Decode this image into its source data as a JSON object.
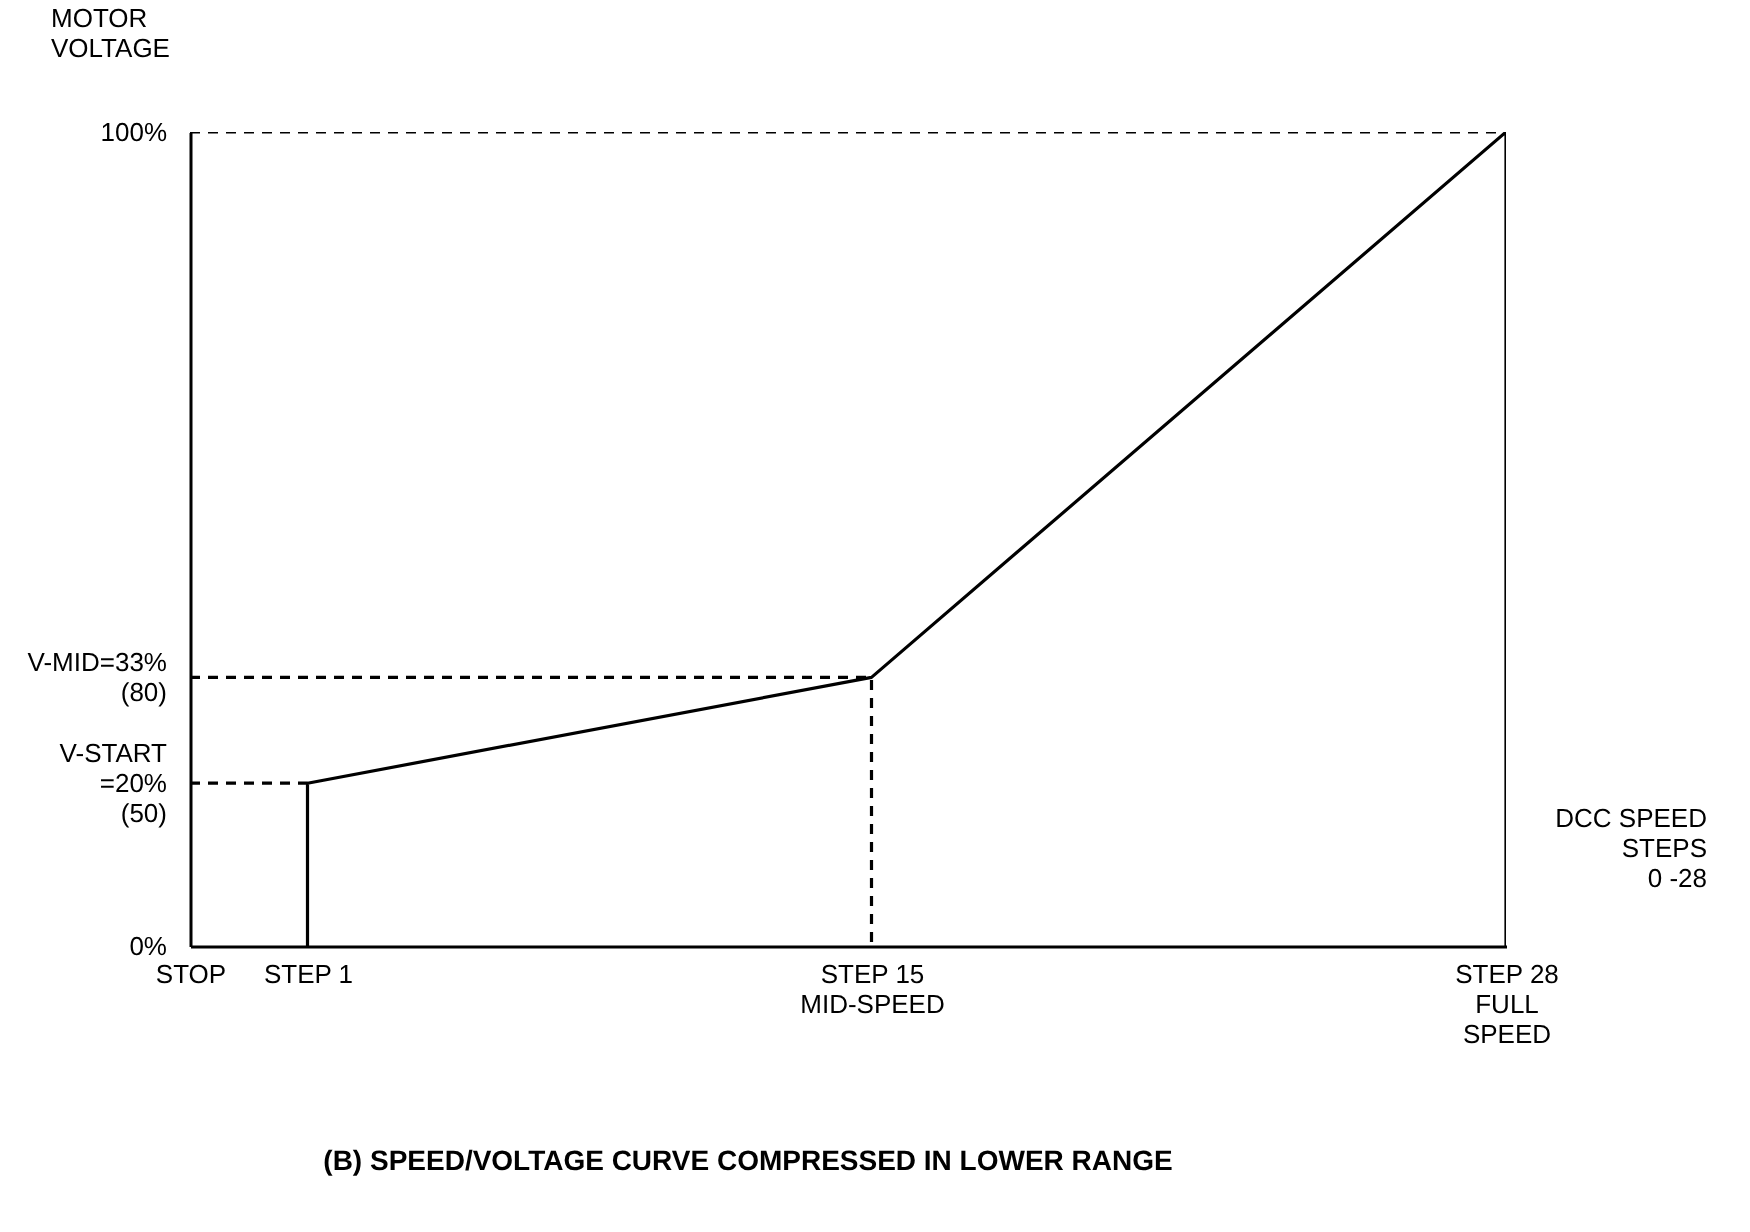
{
  "chart_data": {
    "type": "line",
    "title": "(B) SPEED/VOLTAGE CURVE COMPRESSED IN LOWER RANGE",
    "xlabel": "DCC SPEED\nSTEPS\n0 -28",
    "ylabel": "MOTOR\nVOLTAGE",
    "categories": [
      "STOP",
      null,
      null,
      null,
      null,
      "STEP 1",
      null,
      null,
      null,
      null,
      null,
      null,
      null,
      null,
      null,
      null,
      null,
      null,
      null,
      null,
      null,
      null,
      null,
      null,
      null,
      null,
      null,
      null,
      null,
      "STEP 15\nMID-SPEED",
      null,
      null,
      null,
      null,
      null,
      null,
      null,
      null,
      null,
      null,
      null,
      null,
      null,
      null,
      null,
      null,
      null,
      null,
      null,
      null,
      null,
      null,
      null,
      null,
      null,
      null,
      "STEP 28\nFULL\nSPEED"
    ],
    "ylim": [
      0,
      100
    ],
    "yticks": [
      {
        "value": 0,
        "label": "0%"
      },
      {
        "value": 20,
        "label": "V-START\n=20%\n(50)"
      },
      {
        "value": 33,
        "label": "V-MID=33%\n(80)"
      },
      {
        "value": 100,
        "label": "100%"
      }
    ],
    "series": [
      {
        "color": "#000000",
        "x": [
          "STEP 1",
          "STEP 1",
          "STEP 15\nMID-SPEED",
          "STEP 28\nFULL\nSPEED",
          "STEP 28\nFULL\nSPEED"
        ],
        "values": [
          0,
          20,
          33,
          100,
          0
        ],
        "line_style": "solid"
      },
      {
        "color": "#000000",
        "x": [
          "STOP",
          "STEP 28\nFULL\nSPEED"
        ],
        "values": [
          100,
          100
        ],
        "line_style": "dashed"
      },
      {
        "color": "#000000",
        "x": [
          "STOP",
          "STEP 15\nMID-SPEED",
          "STEP 15\nMID-SPEED"
        ],
        "values": [
          33,
          33,
          0
        ],
        "line_style": "dashed"
      },
      {
        "color": "#000000",
        "x": [
          "STOP",
          "STEP 1"
        ],
        "values": [
          20,
          20
        ],
        "line_style": "dashed"
      }
    ],
    "grid": false,
    "marker": "none"
  }
}
